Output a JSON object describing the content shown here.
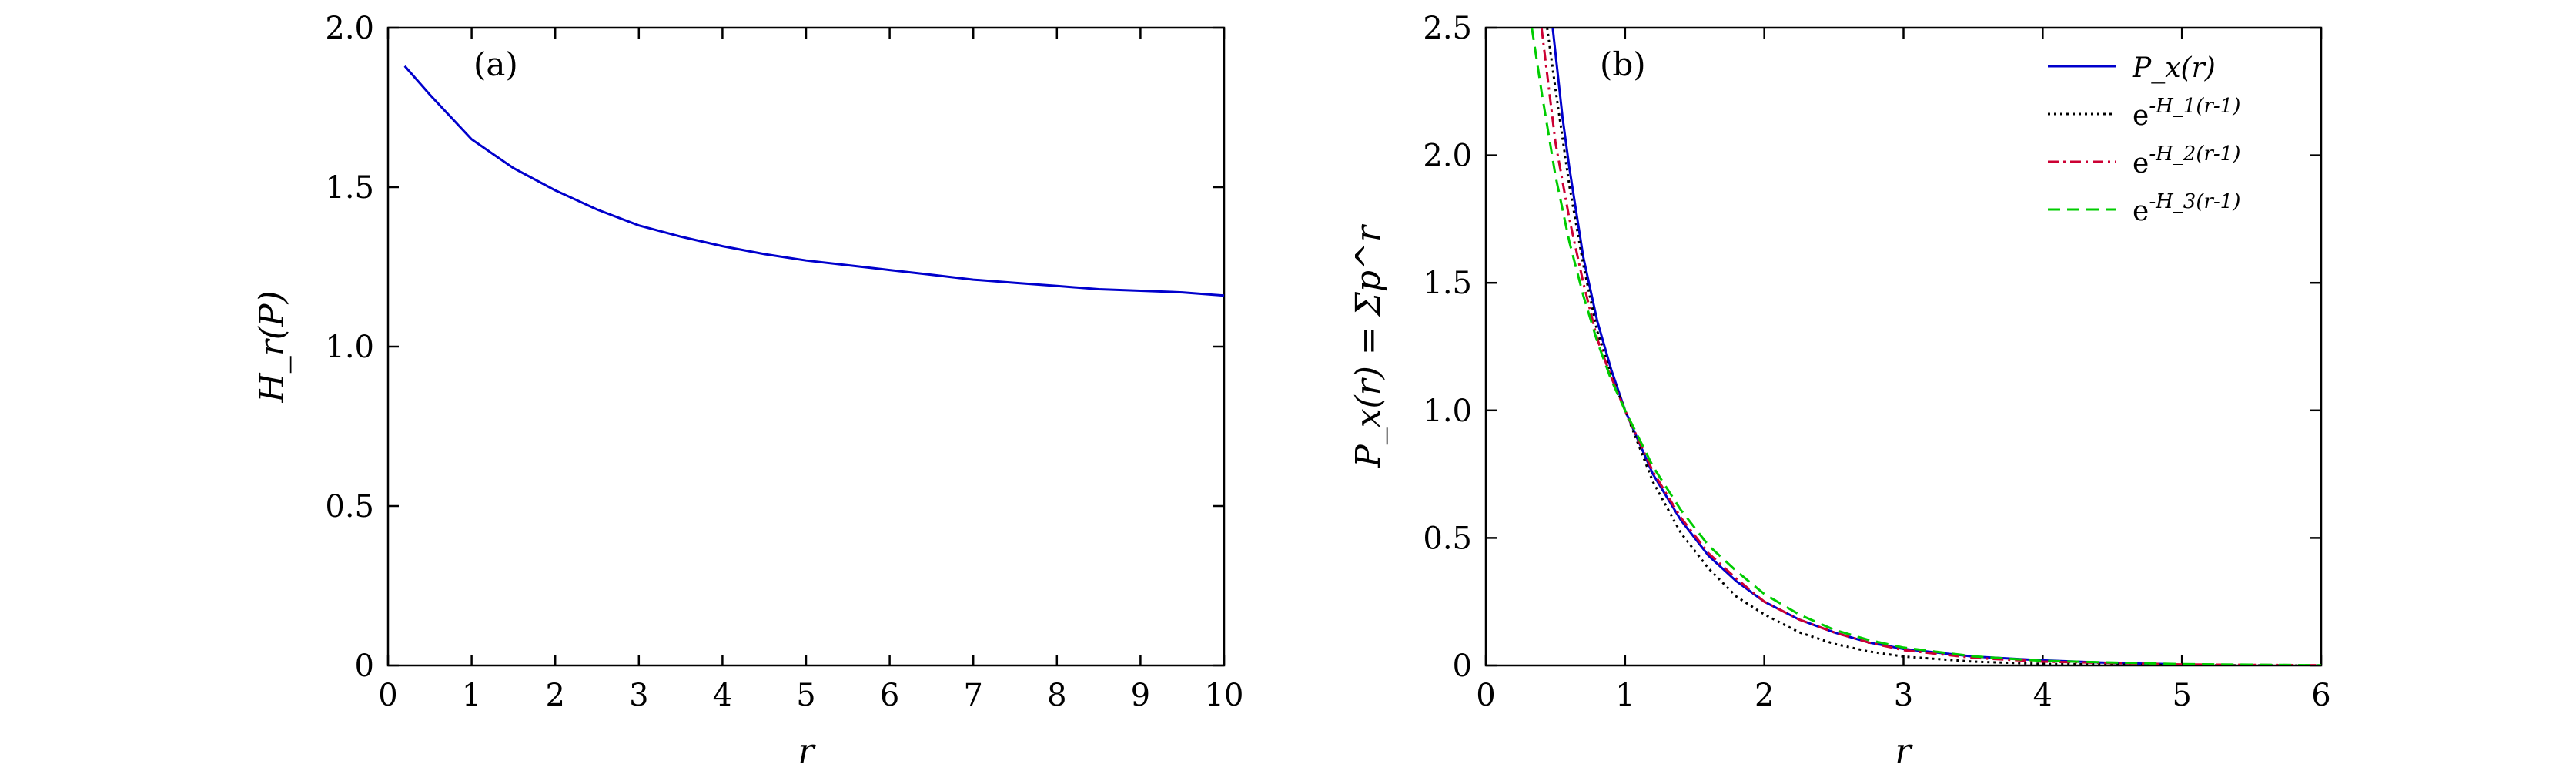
{
  "chart_data": [
    {
      "type": "line",
      "panel_label": "(a)",
      "xlabel": "r",
      "ylabel": "H_r(P)",
      "xlim": [
        0,
        10
      ],
      "ylim": [
        0,
        2.0
      ],
      "xticks": [
        0,
        1,
        2,
        3,
        4,
        5,
        6,
        7,
        8,
        9,
        10
      ],
      "yticks": [
        0,
        0.5,
        1.0,
        1.5,
        2.0
      ],
      "ytick_labels": [
        "0",
        "0.5",
        "1.0",
        "1.5",
        "2.0"
      ],
      "grid": false,
      "series": [
        {
          "color": "#0000cc",
          "x": [
            0.2,
            0.5,
            1.0,
            1.5,
            2.0,
            2.5,
            3.0,
            3.5,
            4.0,
            4.5,
            5.0,
            5.5,
            6.0,
            6.5,
            7.0,
            7.5,
            8.0,
            8.5,
            9.0,
            9.5,
            10.0
          ],
          "y": [
            1.88,
            1.79,
            1.65,
            1.56,
            1.49,
            1.43,
            1.38,
            1.345,
            1.315,
            1.29,
            1.27,
            1.255,
            1.24,
            1.225,
            1.21,
            1.2,
            1.19,
            1.18,
            1.175,
            1.17,
            1.16
          ]
        }
      ]
    },
    {
      "type": "line",
      "panel_label": "(b)",
      "xlabel": "r",
      "ylabel": "P_x(r) = Σp^r",
      "xlim": [
        0,
        6
      ],
      "ylim": [
        0,
        2.5
      ],
      "xticks": [
        0,
        1,
        2,
        3,
        4,
        5,
        6
      ],
      "yticks": [
        0,
        0.5,
        1.0,
        1.5,
        2.0,
        2.5
      ],
      "ytick_labels": [
        "0",
        "0.5",
        "1.0",
        "1.5",
        "2.0",
        "2.5"
      ],
      "grid": false,
      "legend_position": "top-right",
      "series": [
        {
          "name": "P_x(r)",
          "color": "#0000cc",
          "dash": "solid",
          "x": [
            0.48,
            0.55,
            0.6,
            0.7,
            0.8,
            0.9,
            1.0,
            1.2,
            1.4,
            1.6,
            1.8,
            2.0,
            2.25,
            2.5,
            2.75,
            3.0,
            3.5,
            4.0,
            4.5,
            4.9
          ],
          "y": [
            2.5,
            2.15,
            1.95,
            1.6,
            1.35,
            1.16,
            1.0,
            0.75,
            0.57,
            0.43,
            0.33,
            0.25,
            0.18,
            0.13,
            0.09,
            0.065,
            0.035,
            0.02,
            0.01,
            0.005
          ]
        },
        {
          "name": "e^{-H_1(r-1)}",
          "color": "#000000",
          "dash": "dotted",
          "x": [
            0.44,
            0.5,
            0.6,
            0.7,
            0.8,
            0.9,
            1.0,
            1.2,
            1.4,
            1.6,
            1.8,
            2.0,
            2.25,
            2.5,
            2.75,
            3.0,
            3.5,
            4.0,
            5.0,
            6.0
          ],
          "y": [
            2.5,
            2.26,
            1.88,
            1.57,
            1.31,
            1.14,
            1.0,
            0.72,
            0.52,
            0.38,
            0.27,
            0.2,
            0.13,
            0.085,
            0.055,
            0.035,
            0.015,
            0.006,
            0.001,
            0.0
          ]
        },
        {
          "name": "e^{-H_2(r-1)}",
          "color": "#cc0033",
          "dash": "dashdot",
          "x": [
            0.4,
            0.5,
            0.6,
            0.7,
            0.8,
            0.9,
            1.0,
            1.2,
            1.4,
            1.6,
            1.8,
            2.0,
            2.25,
            2.5,
            2.75,
            3.0,
            3.5,
            4.0,
            5.0,
            6.0
          ],
          "y": [
            2.5,
            2.05,
            1.75,
            1.5,
            1.28,
            1.13,
            1.0,
            0.76,
            0.58,
            0.44,
            0.34,
            0.25,
            0.18,
            0.13,
            0.09,
            0.06,
            0.03,
            0.015,
            0.004,
            0.001
          ]
        },
        {
          "name": "e^{-H_3(r-1)}",
          "color": "#00cc00",
          "dash": "dashed",
          "x": [
            0.33,
            0.4,
            0.5,
            0.6,
            0.7,
            0.8,
            0.9,
            1.0,
            1.2,
            1.4,
            1.6,
            1.8,
            2.0,
            2.25,
            2.5,
            2.75,
            3.0,
            3.5,
            4.0,
            5.0,
            6.0
          ],
          "y": [
            2.5,
            2.25,
            1.92,
            1.66,
            1.45,
            1.27,
            1.12,
            1.0,
            0.78,
            0.61,
            0.47,
            0.37,
            0.28,
            0.2,
            0.14,
            0.1,
            0.07,
            0.036,
            0.018,
            0.005,
            0.001
          ]
        }
      ]
    }
  ]
}
